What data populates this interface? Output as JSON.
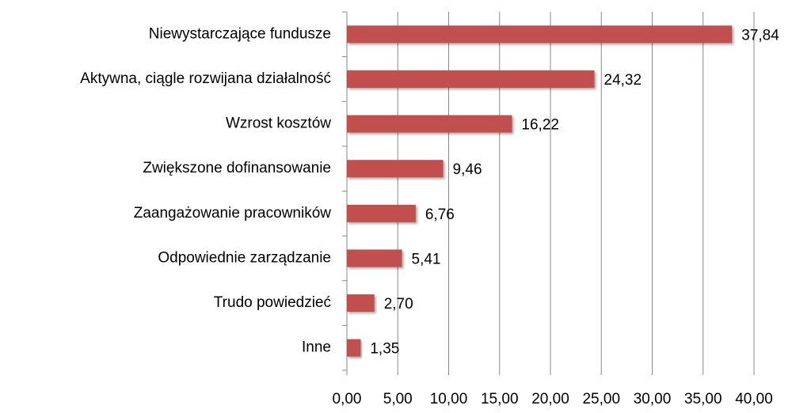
{
  "chart_data": {
    "type": "bar",
    "orientation": "horizontal",
    "categories": [
      "Niewystarczające fundusze",
      "Aktywna, ciągle rozwijana działalność",
      "Wzrost kosztów",
      "Zwiększone dofinansowanie",
      "Zaangażowanie pracowników",
      "Odpowiednie zarządzanie",
      "Trudo powiedzieć",
      "Inne"
    ],
    "values": [
      37.84,
      24.32,
      16.22,
      9.46,
      6.76,
      5.41,
      2.7,
      1.35
    ],
    "value_labels": [
      "37,84",
      "24,32",
      "16,22",
      "9,46",
      "6,76",
      "5,41",
      "2,70",
      "1,35"
    ],
    "color": "#c0504d",
    "xlim": [
      0,
      40
    ],
    "xticks": [
      {
        "value": 0,
        "label": "0,00"
      },
      {
        "value": 5,
        "label": "5,00"
      },
      {
        "value": 10,
        "label": "10,00"
      },
      {
        "value": 15,
        "label": "15,00"
      },
      {
        "value": 20,
        "label": "20,00"
      },
      {
        "value": 25,
        "label": "25,00"
      },
      {
        "value": 30,
        "label": "30,00"
      },
      {
        "value": 35,
        "label": "35,00"
      },
      {
        "value": 40,
        "label": "40,00"
      }
    ],
    "grid": true
  }
}
